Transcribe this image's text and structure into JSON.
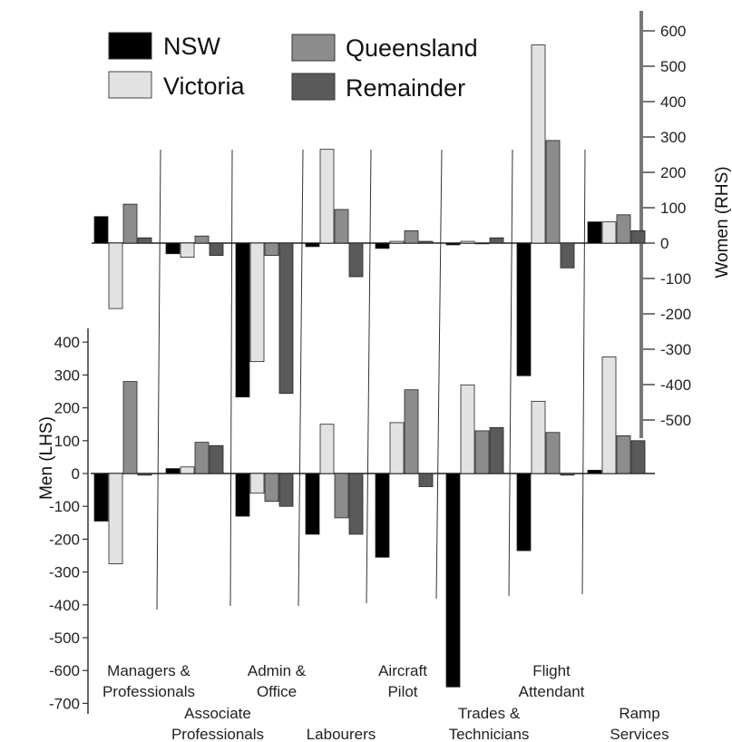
{
  "chart_data": {
    "type": "bar",
    "categories": [
      [
        "Managers &",
        "Professionals"
      ],
      [
        "Associate",
        "Professionals"
      ],
      [
        "Admin &",
        "Office"
      ],
      [
        "Labourers"
      ],
      [
        "Aircraft",
        "Pilot"
      ],
      [
        "Trades &",
        "Technicians"
      ],
      [
        "Flight",
        "Attendant"
      ],
      [
        "Ramp",
        "Services"
      ]
    ],
    "series": [
      {
        "name": "NSW",
        "color": "#000000"
      },
      {
        "name": "Victoria",
        "color": "#e2e2e2"
      },
      {
        "name": "Queensland",
        "color": "#8c8c8c"
      },
      {
        "name": "Remainder",
        "color": "#5a5a5a"
      }
    ],
    "panels": {
      "women": {
        "ylabel": "Women (RHS)",
        "ylim": [
          -550,
          650
        ],
        "ticks": [
          600,
          500,
          400,
          300,
          200,
          100,
          0,
          -100,
          -200,
          -300,
          -400,
          -500
        ],
        "values": [
          [
            75,
            -185,
            110,
            15
          ],
          [
            -30,
            -40,
            20,
            -35
          ],
          [
            -435,
            -335,
            -35,
            -425
          ],
          [
            -10,
            265,
            95,
            -95
          ],
          [
            -15,
            5,
            35,
            5
          ],
          [
            -5,
            5,
            0,
            15
          ],
          [
            -375,
            560,
            290,
            -70
          ],
          [
            60,
            60,
            80,
            35
          ]
        ]
      },
      "men": {
        "ylabel": "Men (LHS)",
        "ylim": [
          -700,
          450
        ],
        "ticks": [
          400,
          300,
          200,
          100,
          0,
          -100,
          -200,
          -300,
          -400,
          -500,
          -600,
          -700
        ],
        "values": [
          [
            -145,
            -275,
            280,
            -5
          ],
          [
            15,
            20,
            95,
            85
          ],
          [
            -130,
            -60,
            -85,
            -100
          ],
          [
            -185,
            150,
            -135,
            -185
          ],
          [
            -255,
            155,
            255,
            -40
          ],
          [
            -650,
            270,
            130,
            140
          ],
          [
            -235,
            220,
            125,
            -5
          ],
          [
            10,
            355,
            115,
            100
          ]
        ]
      }
    }
  }
}
